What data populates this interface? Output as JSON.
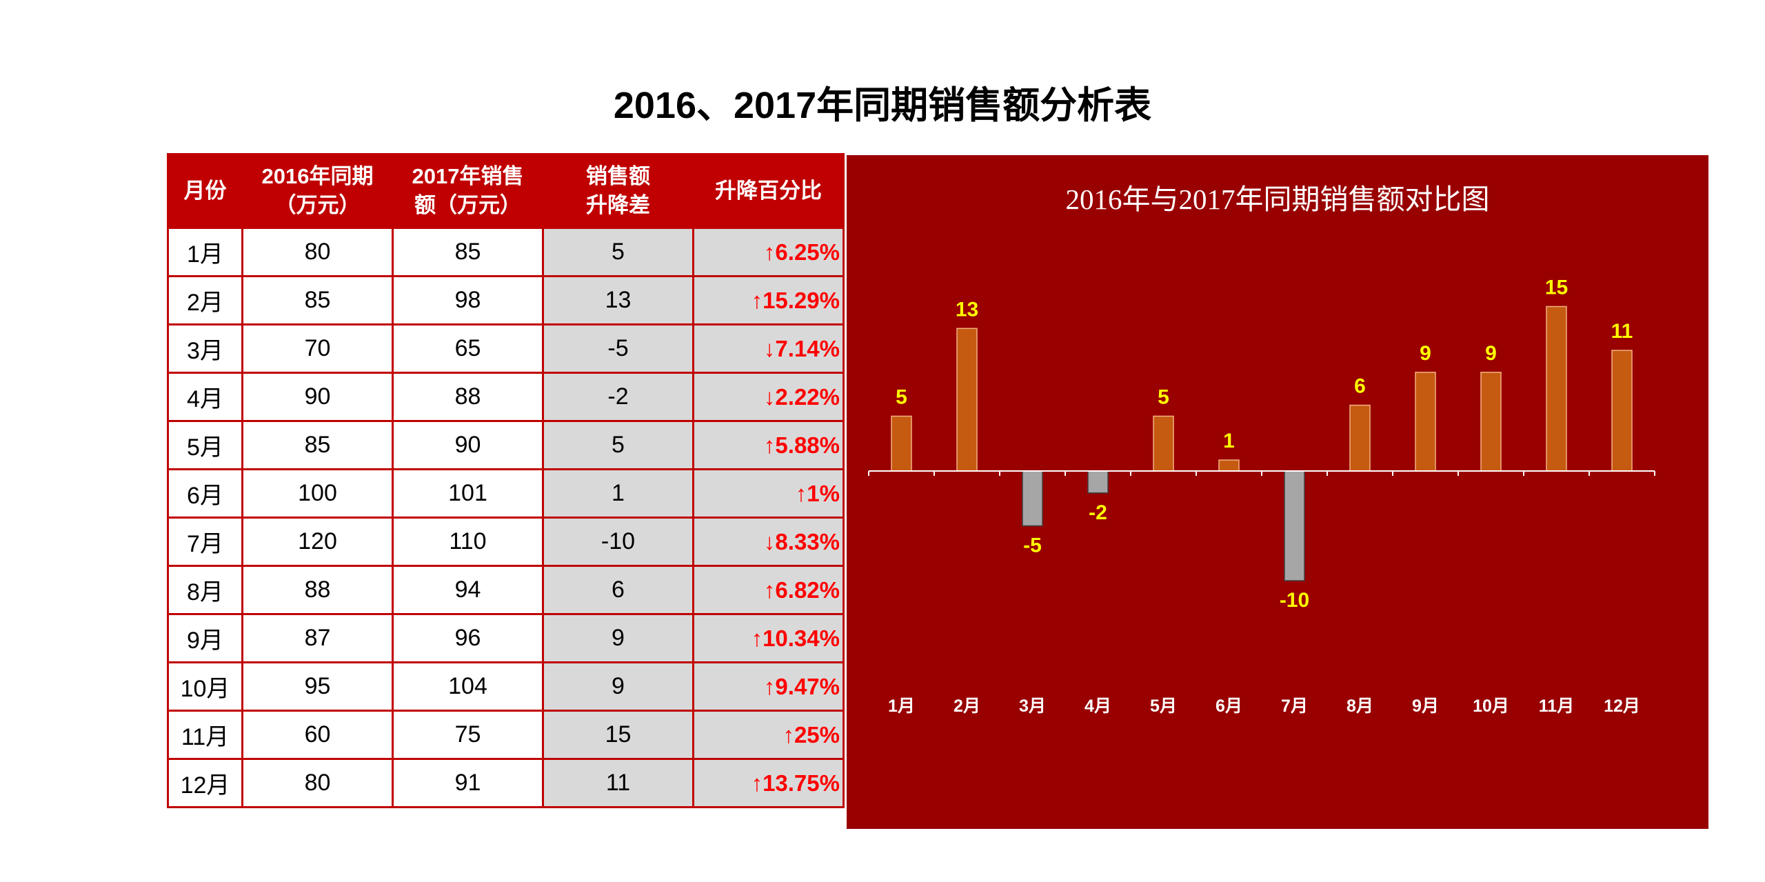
{
  "page": {
    "title": "2016、2017年同期销售额分析表"
  },
  "table": {
    "headers": [
      [
        "月份"
      ],
      [
        "2016年同期",
        "（万元）"
      ],
      [
        "2017年销售",
        "额（万元）"
      ],
      [
        "销售额",
        "升降差"
      ],
      [
        "升降百分比"
      ]
    ],
    "rows": [
      {
        "month": "1月",
        "y2016": "80",
        "y2017": "85",
        "diff": "5",
        "pct": "↑6.25%"
      },
      {
        "month": "2月",
        "y2016": "85",
        "y2017": "98",
        "diff": "13",
        "pct": "↑15.29%"
      },
      {
        "month": "3月",
        "y2016": "70",
        "y2017": "65",
        "diff": "-5",
        "pct": "↓7.14%"
      },
      {
        "month": "4月",
        "y2016": "90",
        "y2017": "88",
        "diff": "-2",
        "pct": "↓2.22%"
      },
      {
        "month": "5月",
        "y2016": "85",
        "y2017": "90",
        "diff": "5",
        "pct": "↑5.88%"
      },
      {
        "month": "6月",
        "y2016": "100",
        "y2017": "101",
        "diff": "1",
        "pct": "↑1%"
      },
      {
        "month": "7月",
        "y2016": "120",
        "y2017": "110",
        "diff": "-10",
        "pct": "↓8.33%"
      },
      {
        "month": "8月",
        "y2016": "88",
        "y2017": "94",
        "diff": "6",
        "pct": "↑6.82%"
      },
      {
        "month": "9月",
        "y2016": "87",
        "y2017": "96",
        "diff": "9",
        "pct": "↑10.34%"
      },
      {
        "month": "10月",
        "y2016": "95",
        "y2017": "104",
        "diff": "9",
        "pct": "↑9.47%"
      },
      {
        "month": "11月",
        "y2016": "60",
        "y2017": "75",
        "diff": "15",
        "pct": "↑25%"
      },
      {
        "month": "12月",
        "y2016": "80",
        "y2017": "91",
        "diff": "11",
        "pct": "↑13.75%"
      }
    ]
  },
  "chart_data": {
    "type": "bar",
    "title": "2016年与2017年同期销售额对比图",
    "categories": [
      "1月",
      "2月",
      "3月",
      "4月",
      "5月",
      "6月",
      "7月",
      "8月",
      "9月",
      "10月",
      "11月",
      "12月"
    ],
    "values": [
      5,
      13,
      -5,
      -2,
      5,
      1,
      -10,
      6,
      9,
      9,
      15,
      11
    ],
    "ylim": [
      -15,
      15
    ],
    "grid": false,
    "legend": "none",
    "colors": {
      "background": "#990000",
      "positive": "#c55a11",
      "negative": "#a6a6a6",
      "data_label": "#ffff00",
      "axis": "#ffffff"
    }
  }
}
